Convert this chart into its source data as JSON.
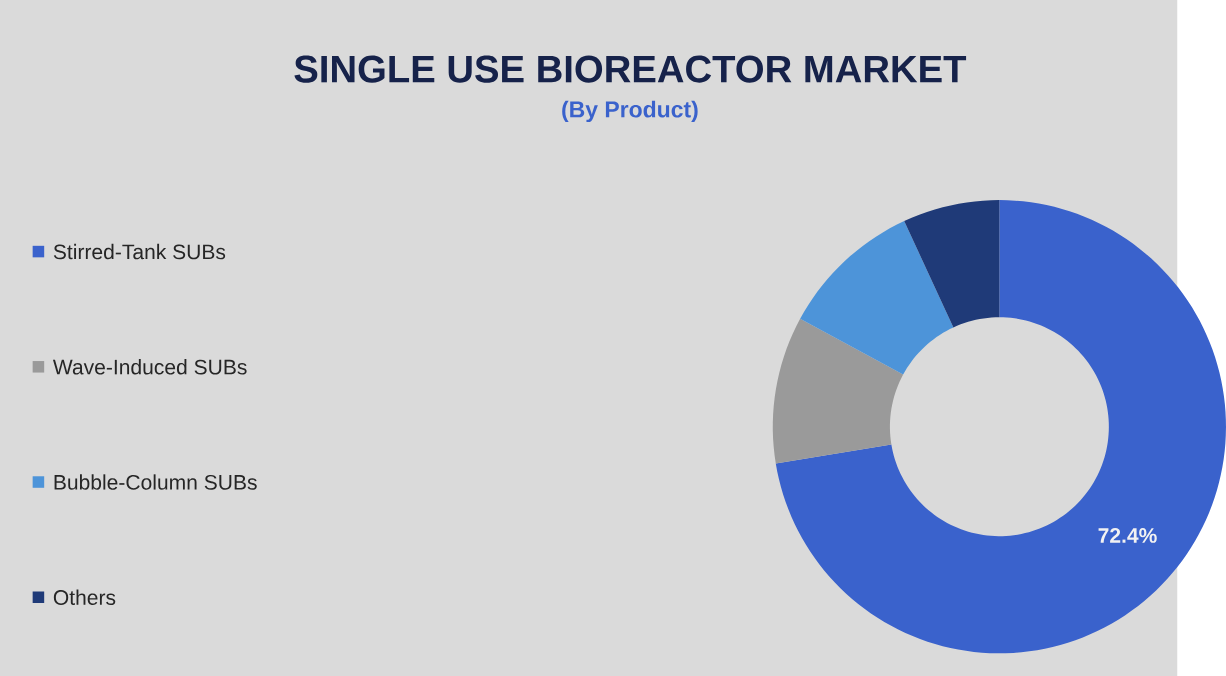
{
  "chart_data": {
    "type": "donut",
    "title": "SINGLE USE BIOREACTOR MARKET",
    "subtitle": "(By Product)",
    "categories": [
      "Stirred-Tank SUBs",
      "Wave-Induced SUBs",
      "Bubble-Column SUBs",
      "Others"
    ],
    "values": [
      72.4,
      10.5,
      10.2,
      6.9
    ],
    "value_labels": [
      "72.4%",
      null,
      null,
      null
    ],
    "colors": [
      "#3a62cc",
      "#9a9a9a",
      "#4d94d9",
      "#1f3a78"
    ],
    "legend": "left"
  }
}
